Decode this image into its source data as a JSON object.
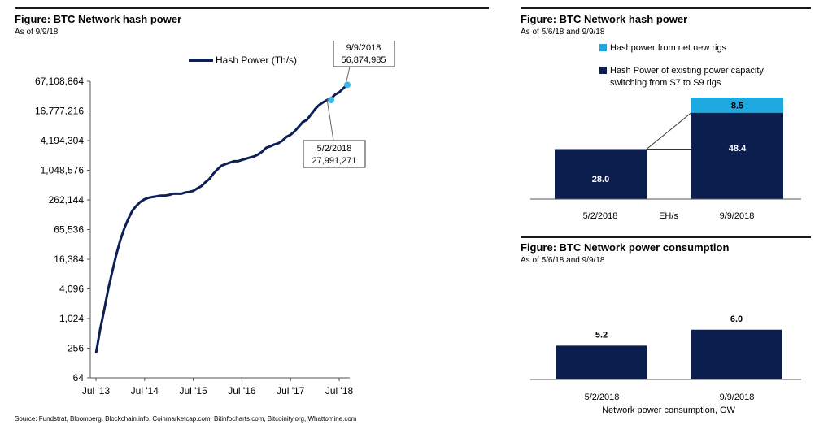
{
  "colors": {
    "navy": "#0c1e4e",
    "light_blue": "#1ea8e0",
    "line": "#0d1f55",
    "marker": "#3fb6e8"
  },
  "source": "Source: Fundstrat, Bloomberg, Blockchain.info, Coinmarketcap.com, Bitinfocharts.com, Bitcoinity.org, Whattomine.com",
  "chart_data": [
    {
      "type": "line",
      "title": "Figure: BTC Network hash power",
      "subtitle": "As of 9/9/18",
      "legend": "Hash Power (Th/s)",
      "legend_position": "top",
      "yscale": "log2",
      "ylim": [
        64,
        67108864
      ],
      "yticks": [
        64,
        256,
        1024,
        4096,
        16384,
        65536,
        262144,
        1048576,
        4194304,
        16777216,
        67108864
      ],
      "ytick_labels": [
        "64",
        "256",
        "1,024",
        "4,096",
        "16,384",
        "65,536",
        "262,144",
        "1,048,576",
        "4,194,304",
        "16,777,216",
        "67,108,864"
      ],
      "xticks": [
        "2013-07",
        "2014-07",
        "2015-07",
        "2016-07",
        "2017-07",
        "2018-07"
      ],
      "xtick_labels": [
        "Jul '13",
        "Jul '14",
        "Jul '15",
        "Jul '16",
        "Jul '17",
        "Jul '18"
      ],
      "xlim": [
        "2013-07",
        "2018-09"
      ],
      "grid": false,
      "x": [
        "2013-07",
        "2013-08",
        "2013-09",
        "2013-10",
        "2013-11",
        "2013-12",
        "2014-01",
        "2014-02",
        "2014-03",
        "2014-04",
        "2014-05",
        "2014-06",
        "2014-07",
        "2014-08",
        "2014-09",
        "2014-10",
        "2014-11",
        "2014-12",
        "2015-01",
        "2015-02",
        "2015-03",
        "2015-04",
        "2015-05",
        "2015-06",
        "2015-07",
        "2015-08",
        "2015-09",
        "2015-10",
        "2015-11",
        "2015-12",
        "2016-01",
        "2016-02",
        "2016-03",
        "2016-04",
        "2016-05",
        "2016-06",
        "2016-07",
        "2016-08",
        "2016-09",
        "2016-10",
        "2016-11",
        "2016-12",
        "2017-01",
        "2017-02",
        "2017-03",
        "2017-04",
        "2017-05",
        "2017-06",
        "2017-07",
        "2017-08",
        "2017-09",
        "2017-10",
        "2017-11",
        "2017-12",
        "2018-01",
        "2018-02",
        "2018-03",
        "2018-04",
        "2018-05",
        "2018-06",
        "2018-07",
        "2018-08",
        "2018-09"
      ],
      "y": [
        200,
        600,
        1500,
        4000,
        9000,
        20000,
        40000,
        70000,
        110000,
        160000,
        200000,
        240000,
        270000,
        290000,
        300000,
        310000,
        320000,
        320000,
        330000,
        350000,
        350000,
        350000,
        370000,
        380000,
        400000,
        450000,
        500000,
        600000,
        700000,
        900000,
        1100000,
        1300000,
        1400000,
        1500000,
        1600000,
        1600000,
        1700000,
        1800000,
        1900000,
        2000000,
        2200000,
        2500000,
        3000000,
        3200000,
        3500000,
        3700000,
        4200000,
        5000000,
        5500000,
        6500000,
        8000000,
        10000000,
        11000000,
        14000000,
        18000000,
        22000000,
        25000000,
        28000000,
        30000000,
        36000000,
        40000000,
        48000000,
        56874985
      ],
      "annotations": [
        {
          "date": "9/9/2018",
          "value": "56,874,985"
        },
        {
          "date": "5/2/2018",
          "value": "27,991,271"
        }
      ]
    },
    {
      "type": "bar",
      "stacked": true,
      "title": "Figure: BTC Network hash power",
      "subtitle": "As of 5/6/18 and  9/9/18",
      "categories": [
        "5/2/2018",
        "9/9/2018"
      ],
      "unit_label": "EH/s",
      "series": [
        {
          "name": "Hash Power of existing power capacity switching from S7 to S9 rigs",
          "values": [
            28.0,
            48.4
          ],
          "labels": [
            "28.0",
            "48.4"
          ]
        },
        {
          "name": "Hashpower from net new rigs",
          "values": [
            0,
            8.5
          ],
          "labels": [
            "",
            "8.5"
          ]
        }
      ],
      "legend_position": "top"
    },
    {
      "type": "bar",
      "title": "Figure: BTC Network power consumption",
      "subtitle": "As of 5/6/18 and 9/9/18",
      "categories": [
        "5/2/2018",
        "9/9/2018"
      ],
      "values": [
        5.2,
        6.0
      ],
      "labels": [
        "5.2",
        "6.0"
      ],
      "xlabel": "Network power consumption, GW"
    }
  ]
}
